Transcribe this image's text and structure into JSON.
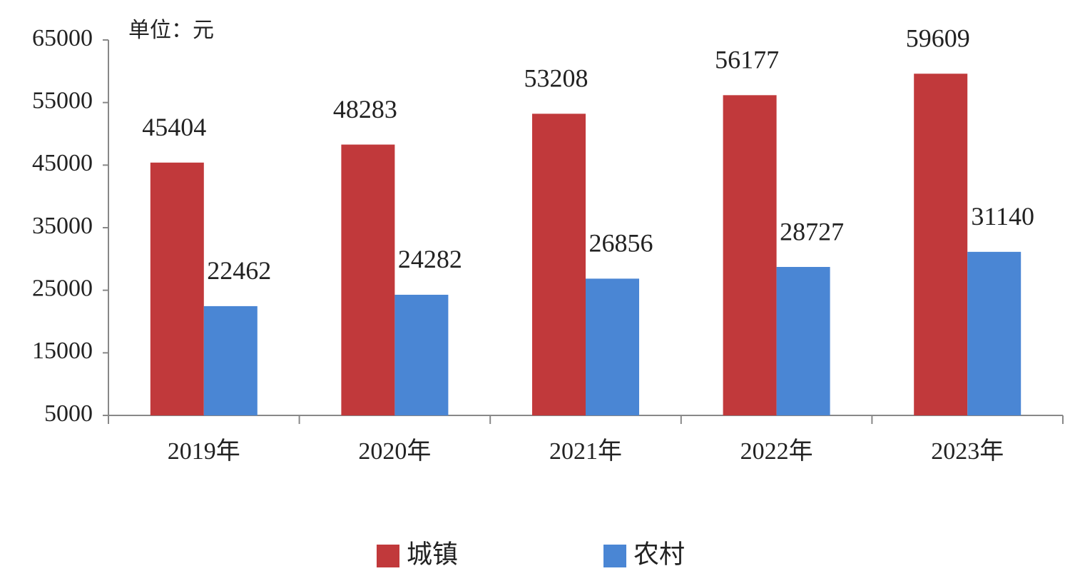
{
  "chart_data": {
    "type": "bar",
    "y_axis_label": "单位：元",
    "categories": [
      "2019年",
      "2020年",
      "2021年",
      "2022年",
      "2023年"
    ],
    "series": [
      {
        "name": "城镇",
        "color": "#c1393b",
        "values": [
          45404,
          48283,
          53208,
          56177,
          59609
        ]
      },
      {
        "name": "农村",
        "color": "#4a86d4",
        "values": [
          22462,
          24282,
          26856,
          28727,
          31140
        ]
      }
    ],
    "ylim": [
      5000,
      65000
    ],
    "yticks": [
      5000,
      15000,
      25000,
      35000,
      45000,
      55000,
      65000
    ],
    "legend": "bottom"
  }
}
